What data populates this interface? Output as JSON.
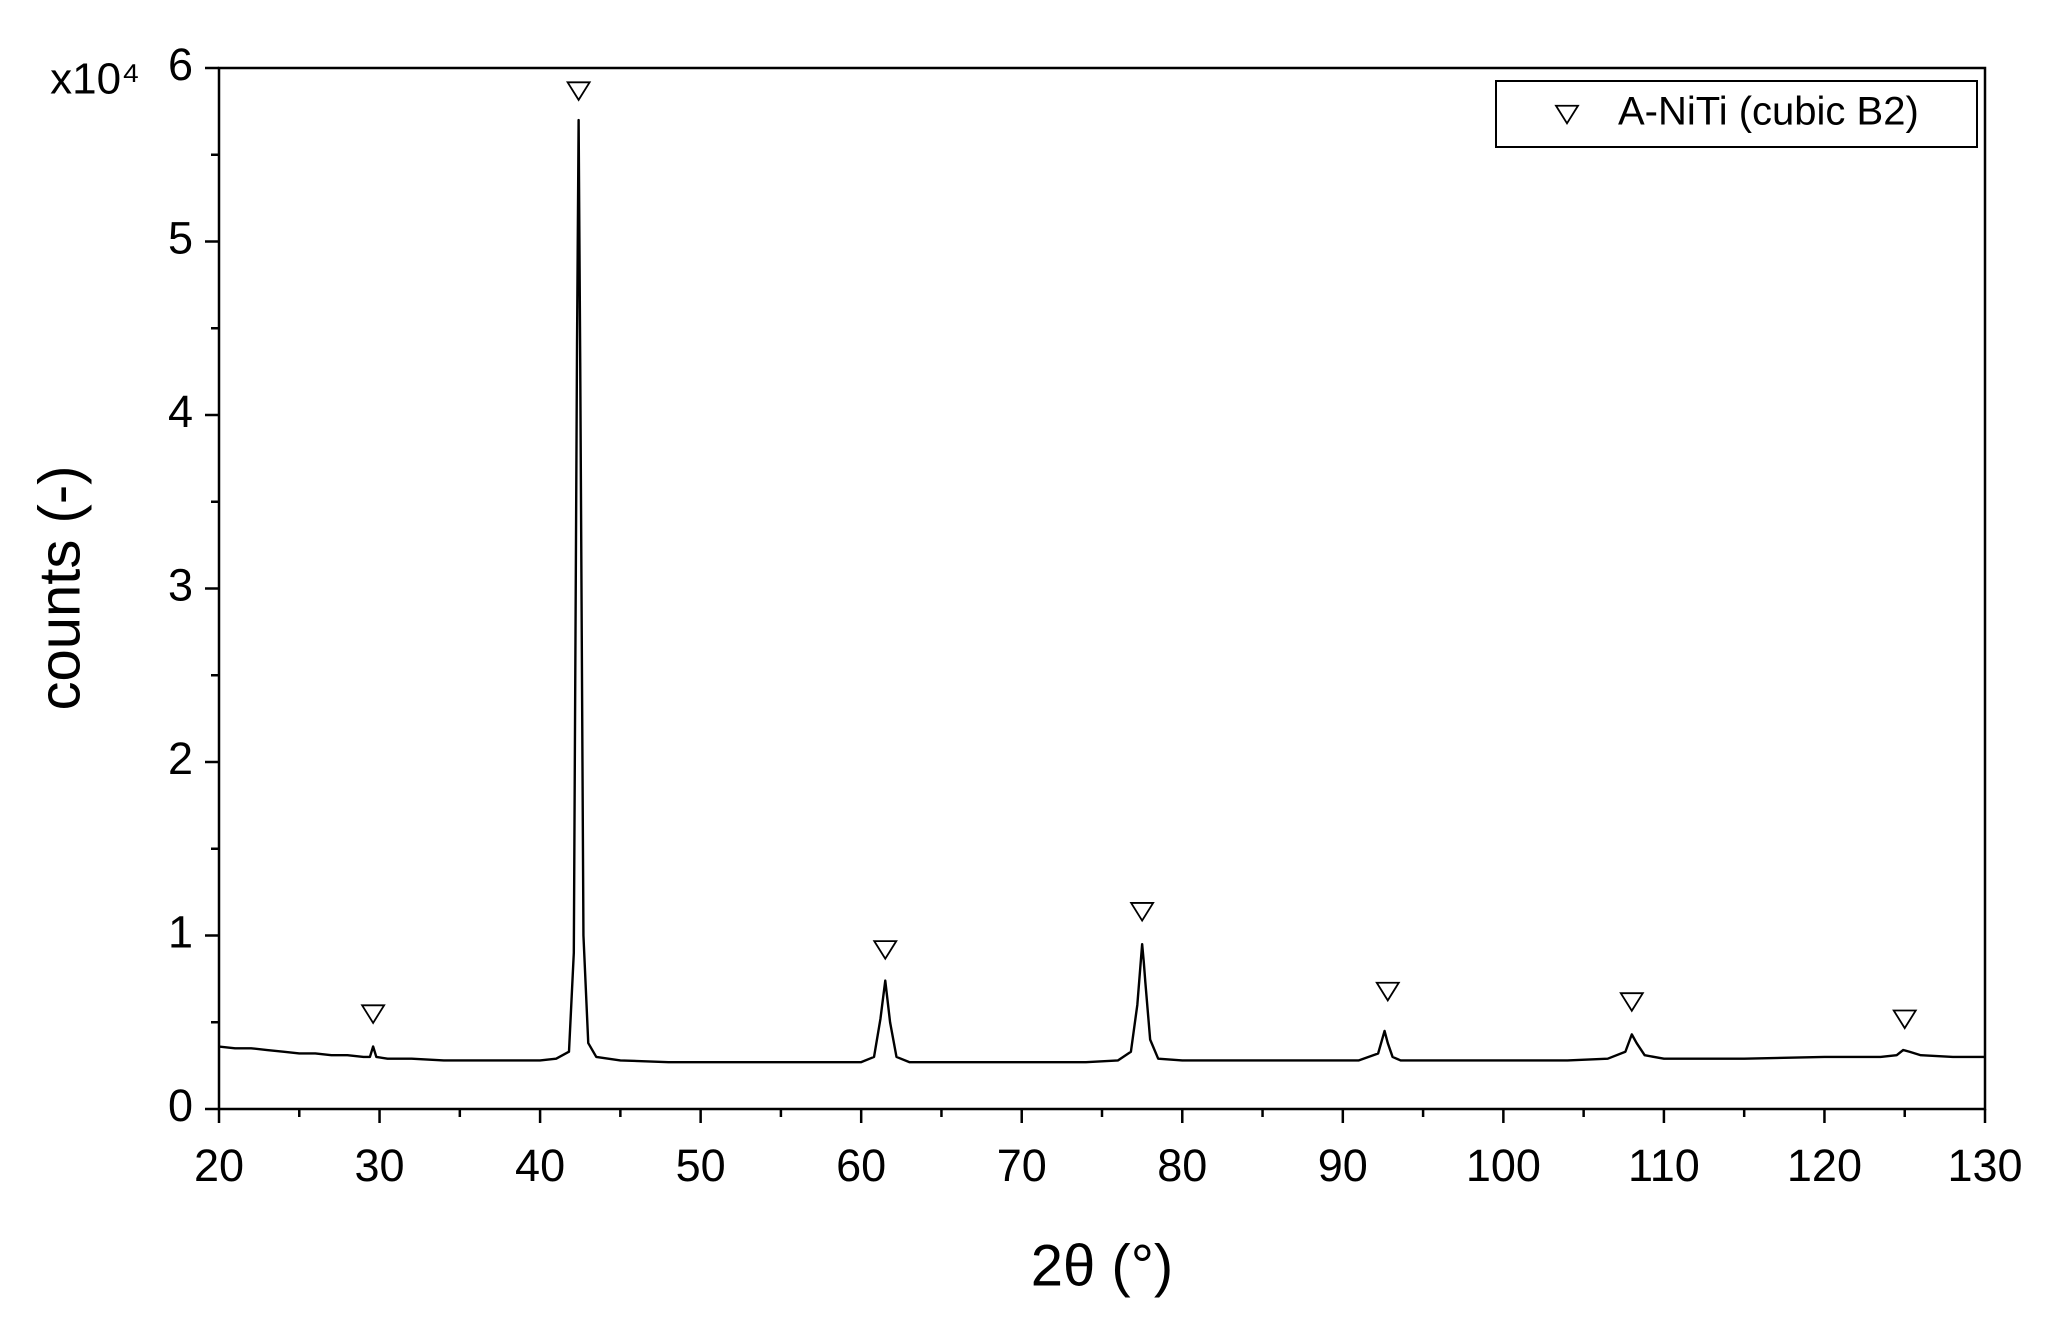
{
  "chart_data": {
    "type": "line",
    "y_multiplier": "x10⁴",
    "xlabel": "2θ (°)",
    "ylabel": "counts (-)",
    "xlim": [
      20,
      130
    ],
    "ylim": [
      0,
      6
    ],
    "xticks": [
      20,
      30,
      40,
      50,
      60,
      70,
      80,
      90,
      100,
      110,
      120,
      130
    ],
    "yticks": [
      0,
      1,
      2,
      3,
      4,
      5,
      6
    ],
    "xminorticks": [
      25,
      35,
      45,
      55,
      65,
      75,
      85,
      95,
      105,
      115,
      125
    ],
    "yminorticks": [
      0.5,
      1.5,
      2.5,
      3.5,
      4.5,
      5.5
    ],
    "legend": "upper right",
    "series": [
      {
        "type": "line",
        "color": "#000000",
        "x": [
          20,
          21,
          22,
          23,
          24,
          25,
          26,
          27,
          28,
          29,
          29.4,
          29.6,
          29.8,
          30.5,
          32,
          34,
          36,
          38,
          40,
          41,
          41.8,
          42.1,
          42.3,
          42.4,
          42.5,
          42.7,
          43,
          43.5,
          45,
          48,
          50,
          55,
          58,
          60,
          60.8,
          61.2,
          61.5,
          61.8,
          62.2,
          63,
          66,
          70,
          74,
          76,
          76.8,
          77.2,
          77.5,
          77.6,
          77.7,
          78,
          78.5,
          80,
          84,
          88,
          91,
          92.2,
          92.6,
          92.8,
          93.1,
          93.6,
          96,
          100,
          104,
          106.5,
          107.6,
          108,
          108.3,
          108.8,
          110,
          115,
          120,
          123.5,
          124.5,
          124.9,
          125.3,
          126,
          128,
          130
        ],
        "values": [
          0.36,
          0.35,
          0.35,
          0.34,
          0.33,
          0.32,
          0.32,
          0.31,
          0.31,
          0.3,
          0.3,
          0.36,
          0.3,
          0.29,
          0.29,
          0.28,
          0.28,
          0.28,
          0.28,
          0.29,
          0.33,
          0.9,
          4.4,
          5.7,
          4.3,
          1.0,
          0.38,
          0.3,
          0.28,
          0.27,
          0.27,
          0.27,
          0.27,
          0.27,
          0.3,
          0.52,
          0.74,
          0.5,
          0.3,
          0.27,
          0.27,
          0.27,
          0.27,
          0.28,
          0.33,
          0.6,
          0.95,
          0.85,
          0.73,
          0.4,
          0.29,
          0.28,
          0.28,
          0.28,
          0.28,
          0.32,
          0.45,
          0.38,
          0.3,
          0.28,
          0.28,
          0.28,
          0.28,
          0.29,
          0.33,
          0.43,
          0.38,
          0.31,
          0.29,
          0.29,
          0.3,
          0.3,
          0.31,
          0.34,
          0.33,
          0.31,
          0.3,
          0.3
        ]
      },
      {
        "type": "scatter",
        "name": "A-NiTi (cubic B2)",
        "marker": "triangle-down",
        "color": "#000000",
        "x": [
          29.6,
          42.4,
          61.5,
          77.5,
          92.8,
          108,
          125
        ],
        "values": [
          0.55,
          5.87,
          0.92,
          1.14,
          0.68,
          0.62,
          0.52
        ]
      }
    ]
  }
}
